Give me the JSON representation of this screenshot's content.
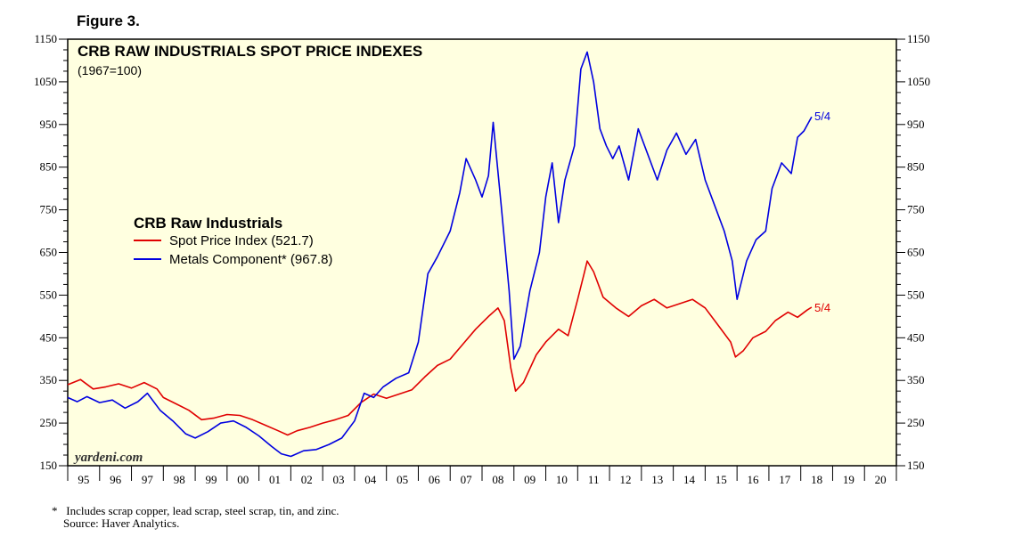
{
  "figure_label": "Figure 3.",
  "footnote": {
    "marker": "*",
    "note": "Includes scrap copper, lead scrap, steel scrap, tin, and zinc.",
    "source": "Source: Haver Analytics."
  },
  "chart_data": {
    "type": "line",
    "title": "CRB RAW INDUSTRIALS SPOT PRICE INDEXES",
    "subtitle": "(1967=100)",
    "legend_title": "CRB Raw Industrials",
    "legend_position": "left-center",
    "watermark": "yardeni.com",
    "end_label": "5/4",
    "ylim": [
      150,
      1150
    ],
    "y_ticks": [
      150,
      250,
      350,
      450,
      550,
      650,
      750,
      850,
      950,
      1050,
      1150
    ],
    "xlim": [
      1995,
      2021
    ],
    "x_tick_labels": [
      "95",
      "96",
      "97",
      "98",
      "99",
      "00",
      "01",
      "02",
      "03",
      "04",
      "05",
      "06",
      "07",
      "08",
      "09",
      "10",
      "11",
      "12",
      "13",
      "14",
      "15",
      "16",
      "17",
      "18",
      "19",
      "20"
    ],
    "colors": {
      "background": "#ffffe0",
      "spot": "#e00000",
      "metals": "#0000e0"
    },
    "series": [
      {
        "name": "Spot Price Index (521.7)",
        "color": "#e00000",
        "points": [
          [
            1995.0,
            340
          ],
          [
            1995.4,
            352
          ],
          [
            1995.8,
            330
          ],
          [
            1996.2,
            335
          ],
          [
            1996.6,
            342
          ],
          [
            1997.0,
            332
          ],
          [
            1997.4,
            345
          ],
          [
            1997.8,
            330
          ],
          [
            1998.0,
            310
          ],
          [
            1998.4,
            295
          ],
          [
            1998.8,
            280
          ],
          [
            1999.2,
            258
          ],
          [
            1999.6,
            262
          ],
          [
            2000.0,
            270
          ],
          [
            2000.4,
            268
          ],
          [
            2000.8,
            258
          ],
          [
            2001.2,
            245
          ],
          [
            2001.6,
            232
          ],
          [
            2001.9,
            222
          ],
          [
            2002.2,
            232
          ],
          [
            2002.6,
            240
          ],
          [
            2003.0,
            250
          ],
          [
            2003.4,
            258
          ],
          [
            2003.8,
            268
          ],
          [
            2004.2,
            298
          ],
          [
            2004.6,
            318
          ],
          [
            2005.0,
            308
          ],
          [
            2005.4,
            318
          ],
          [
            2005.8,
            328
          ],
          [
            2006.2,
            358
          ],
          [
            2006.6,
            385
          ],
          [
            2007.0,
            400
          ],
          [
            2007.4,
            435
          ],
          [
            2007.8,
            470
          ],
          [
            2008.2,
            500
          ],
          [
            2008.5,
            520
          ],
          [
            2008.7,
            490
          ],
          [
            2008.9,
            380
          ],
          [
            2009.05,
            325
          ],
          [
            2009.3,
            345
          ],
          [
            2009.7,
            410
          ],
          [
            2010.0,
            440
          ],
          [
            2010.4,
            470
          ],
          [
            2010.7,
            455
          ],
          [
            2011.0,
            540
          ],
          [
            2011.2,
            600
          ],
          [
            2011.3,
            630
          ],
          [
            2011.5,
            605
          ],
          [
            2011.8,
            545
          ],
          [
            2012.2,
            520
          ],
          [
            2012.6,
            500
          ],
          [
            2013.0,
            525
          ],
          [
            2013.4,
            540
          ],
          [
            2013.8,
            520
          ],
          [
            2014.2,
            530
          ],
          [
            2014.6,
            540
          ],
          [
            2015.0,
            520
          ],
          [
            2015.4,
            480
          ],
          [
            2015.8,
            440
          ],
          [
            2015.95,
            405
          ],
          [
            2016.2,
            420
          ],
          [
            2016.5,
            450
          ],
          [
            2016.9,
            465
          ],
          [
            2017.2,
            490
          ],
          [
            2017.6,
            510
          ],
          [
            2017.9,
            498
          ],
          [
            2018.2,
            515
          ],
          [
            2018.34,
            521.7
          ]
        ]
      },
      {
        "name": "Metals Component* (967.8)",
        "color": "#0000e0",
        "points": [
          [
            1995.0,
            310
          ],
          [
            1995.3,
            300
          ],
          [
            1995.6,
            312
          ],
          [
            1996.0,
            298
          ],
          [
            1996.4,
            304
          ],
          [
            1996.8,
            285
          ],
          [
            1997.2,
            300
          ],
          [
            1997.5,
            320
          ],
          [
            1997.9,
            280
          ],
          [
            1998.3,
            255
          ],
          [
            1998.7,
            225
          ],
          [
            1999.0,
            215
          ],
          [
            1999.4,
            230
          ],
          [
            1999.8,
            250
          ],
          [
            2000.2,
            255
          ],
          [
            2000.6,
            240
          ],
          [
            2001.0,
            220
          ],
          [
            2001.4,
            195
          ],
          [
            2001.7,
            178
          ],
          [
            2002.0,
            172
          ],
          [
            2002.4,
            185
          ],
          [
            2002.8,
            188
          ],
          [
            2003.2,
            200
          ],
          [
            2003.6,
            215
          ],
          [
            2004.0,
            255
          ],
          [
            2004.3,
            320
          ],
          [
            2004.6,
            310
          ],
          [
            2004.9,
            335
          ],
          [
            2005.3,
            355
          ],
          [
            2005.7,
            368
          ],
          [
            2006.0,
            440
          ],
          [
            2006.3,
            600
          ],
          [
            2006.6,
            640
          ],
          [
            2007.0,
            700
          ],
          [
            2007.3,
            790
          ],
          [
            2007.5,
            870
          ],
          [
            2007.8,
            820
          ],
          [
            2008.0,
            780
          ],
          [
            2008.2,
            830
          ],
          [
            2008.35,
            955
          ],
          [
            2008.6,
            760
          ],
          [
            2008.85,
            560
          ],
          [
            2009.0,
            400
          ],
          [
            2009.2,
            430
          ],
          [
            2009.5,
            560
          ],
          [
            2009.8,
            650
          ],
          [
            2010.0,
            780
          ],
          [
            2010.2,
            860
          ],
          [
            2010.4,
            720
          ],
          [
            2010.6,
            820
          ],
          [
            2010.9,
            900
          ],
          [
            2011.1,
            1080
          ],
          [
            2011.3,
            1120
          ],
          [
            2011.5,
            1050
          ],
          [
            2011.7,
            940
          ],
          [
            2011.9,
            900
          ],
          [
            2012.1,
            870
          ],
          [
            2012.3,
            900
          ],
          [
            2012.6,
            820
          ],
          [
            2012.9,
            940
          ],
          [
            2013.2,
            880
          ],
          [
            2013.5,
            820
          ],
          [
            2013.8,
            890
          ],
          [
            2014.1,
            930
          ],
          [
            2014.4,
            880
          ],
          [
            2014.7,
            915
          ],
          [
            2015.0,
            820
          ],
          [
            2015.3,
            760
          ],
          [
            2015.6,
            700
          ],
          [
            2015.85,
            630
          ],
          [
            2016.0,
            540
          ],
          [
            2016.3,
            630
          ],
          [
            2016.6,
            680
          ],
          [
            2016.9,
            700
          ],
          [
            2017.1,
            800
          ],
          [
            2017.4,
            860
          ],
          [
            2017.7,
            835
          ],
          [
            2017.9,
            920
          ],
          [
            2018.1,
            935
          ],
          [
            2018.34,
            967.8
          ]
        ]
      }
    ]
  }
}
